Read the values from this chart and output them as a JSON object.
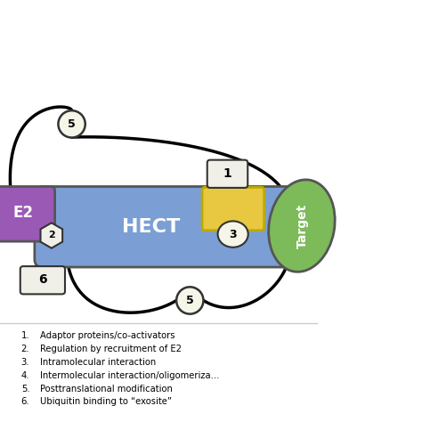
{
  "bg_color": "#ffffff",
  "hect_color": "#7b9fd4",
  "hect_text": "HECT",
  "hect_text_color": "#ffffff",
  "e2_color": "#9b59b6",
  "e2_text": "E2",
  "target_color": "#7dba5a",
  "target_text": "Target",
  "adaptor_color": "#e8c840",
  "label_box_color": "#f0f0e8",
  "label_box_edge": "#333333",
  "circle_color": "#f5f5e8",
  "circle_edge": "#333333",
  "legend_items": [
    "Adaptor proteins/co-activators",
    "Regulation by recruitment of E2",
    "Intramolecular interaction",
    "Intermolecular interaction/oligomeriza...",
    "Posttranslational modification",
    "Ubiquitin binding to “exosite”"
  ]
}
